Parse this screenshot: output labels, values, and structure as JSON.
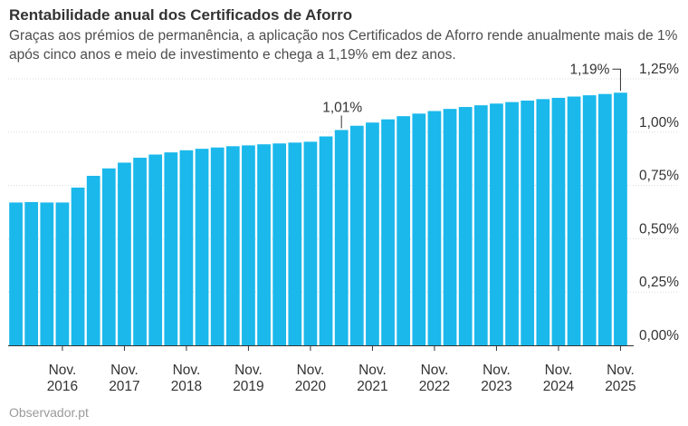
{
  "header": {
    "title": "Rentabilidade anual dos Certificados de Aforro",
    "subtitle": "Graças aos prémios de permanência, a aplicação nos Certificados de Aforro rende anualmente mais de 1% após cinco anos e meio de investimento e chega a 1,19% em dez anos."
  },
  "footer": {
    "source": "Observador.pt"
  },
  "chart_data": {
    "type": "bar",
    "title": "Rentabilidade anual dos Certificados de Aforro",
    "xlabel": "",
    "ylabel": "",
    "ylim": [
      0,
      1.25
    ],
    "yticks": [
      0,
      0.25,
      0.5,
      0.75,
      1.0,
      1.25
    ],
    "ytick_labels": [
      "0,00%",
      "0,25%",
      "0,50%",
      "0,75%",
      "1,00%",
      "1,25%"
    ],
    "grid": true,
    "color": "#1ab8eb",
    "x_tick_labels": [
      {
        "month": "Nov.",
        "year": "2016",
        "index": 3
      },
      {
        "month": "Nov.",
        "year": "2017",
        "index": 7
      },
      {
        "month": "Nov.",
        "year": "2018",
        "index": 11
      },
      {
        "month": "Nov.",
        "year": "2019",
        "index": 15
      },
      {
        "month": "Nov.",
        "year": "2020",
        "index": 19
      },
      {
        "month": "Nov.",
        "year": "2021",
        "index": 23
      },
      {
        "month": "Nov.",
        "year": "2022",
        "index": 27
      },
      {
        "month": "Nov.",
        "year": "2023",
        "index": 31
      },
      {
        "month": "Nov.",
        "year": "2024",
        "index": 35
      },
      {
        "month": "Nov.",
        "year": "2025",
        "index": 39
      }
    ],
    "values": [
      0.67,
      0.672,
      0.67,
      0.67,
      0.74,
      0.795,
      0.83,
      0.857,
      0.88,
      0.895,
      0.905,
      0.915,
      0.922,
      0.928,
      0.934,
      0.938,
      0.943,
      0.947,
      0.951,
      0.955,
      0.98,
      1.01,
      1.03,
      1.045,
      1.06,
      1.075,
      1.087,
      1.099,
      1.109,
      1.118,
      1.126,
      1.134,
      1.141,
      1.148,
      1.155,
      1.161,
      1.167,
      1.173,
      1.179,
      1.185
    ],
    "annotations": [
      {
        "text": "1,01%",
        "index": 21
      },
      {
        "text": "1,19%",
        "index": 39
      }
    ]
  }
}
